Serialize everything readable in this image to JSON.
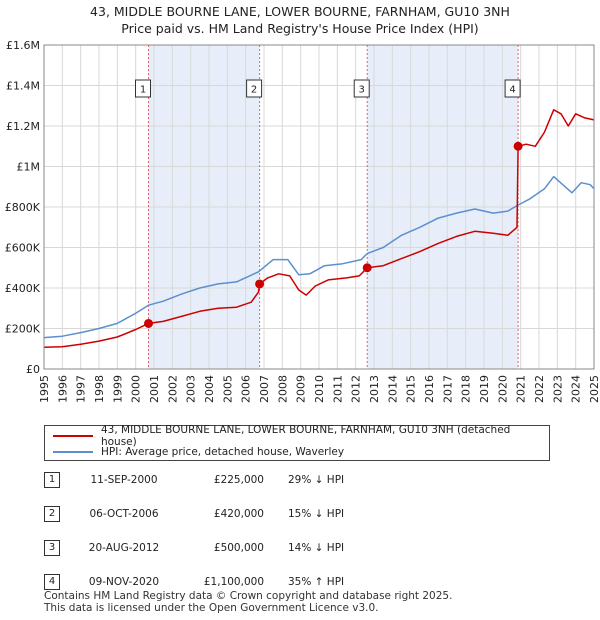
{
  "title_line1": "43, MIDDLE BOURNE LANE, LOWER BOURNE, FARNHAM, GU10 3NH",
  "title_line2": "Price paid vs. HM Land Registry's House Price Index (HPI)",
  "chart_data": {
    "type": "line",
    "xlim": [
      1995,
      2025
    ],
    "ylim": [
      0,
      1600000
    ],
    "y_ticks": [
      {
        "value": 0,
        "label": "£0"
      },
      {
        "value": 200000,
        "label": "£200K"
      },
      {
        "value": 400000,
        "label": "£400K"
      },
      {
        "value": 600000,
        "label": "£600K"
      },
      {
        "value": 800000,
        "label": "£800K"
      },
      {
        "value": 1000000,
        "label": "£1M"
      },
      {
        "value": 1200000,
        "label": "£1.2M"
      },
      {
        "value": 1400000,
        "label": "£1.4M"
      },
      {
        "value": 1600000,
        "label": "£1.6M"
      }
    ],
    "x_ticks": [
      "1995",
      "1996",
      "1997",
      "1998",
      "1999",
      "2000",
      "2001",
      "2002",
      "2003",
      "2004",
      "2005",
      "2006",
      "2007",
      "2008",
      "2009",
      "2010",
      "2011",
      "2012",
      "2013",
      "2014",
      "2015",
      "2016",
      "2017",
      "2018",
      "2019",
      "2020",
      "2021",
      "2022",
      "2023",
      "2024",
      "2025"
    ],
    "grid": true,
    "shaded_periods": [
      [
        2000.7,
        2006.76
      ],
      [
        2012.63,
        2020.86
      ]
    ],
    "series": [
      {
        "name": "43, MIDDLE BOURNE LANE, LOWER BOURNE, FARNHAM, GU10 3NH (detached house)",
        "color": "#cc0000",
        "points": [
          [
            1995.0,
            107000
          ],
          [
            1996.0,
            110000
          ],
          [
            1997.0,
            122000
          ],
          [
            1998.0,
            138000
          ],
          [
            1999.0,
            158000
          ],
          [
            2000.0,
            195000
          ],
          [
            2000.7,
            225000
          ],
          [
            2001.5,
            235000
          ],
          [
            2002.5,
            260000
          ],
          [
            2003.5,
            285000
          ],
          [
            2004.5,
            300000
          ],
          [
            2005.5,
            305000
          ],
          [
            2006.3,
            330000
          ],
          [
            2006.7,
            380000
          ],
          [
            2006.76,
            420000
          ],
          [
            2007.2,
            450000
          ],
          [
            2007.8,
            470000
          ],
          [
            2008.4,
            460000
          ],
          [
            2008.9,
            390000
          ],
          [
            2009.3,
            365000
          ],
          [
            2009.8,
            410000
          ],
          [
            2010.5,
            440000
          ],
          [
            2011.5,
            450000
          ],
          [
            2012.2,
            460000
          ],
          [
            2012.63,
            500000
          ],
          [
            2013.5,
            510000
          ],
          [
            2014.5,
            545000
          ],
          [
            2015.5,
            580000
          ],
          [
            2016.5,
            620000
          ],
          [
            2017.5,
            655000
          ],
          [
            2018.5,
            680000
          ],
          [
            2019.5,
            670000
          ],
          [
            2020.3,
            660000
          ],
          [
            2020.8,
            700000
          ],
          [
            2020.86,
            1100000
          ],
          [
            2021.3,
            1110000
          ],
          [
            2021.8,
            1100000
          ],
          [
            2022.3,
            1170000
          ],
          [
            2022.8,
            1280000
          ],
          [
            2023.2,
            1260000
          ],
          [
            2023.6,
            1200000
          ],
          [
            2024.0,
            1260000
          ],
          [
            2024.5,
            1240000
          ],
          [
            2025.0,
            1230000
          ]
        ]
      },
      {
        "name": "HPI: Average price, detached house, Waverley",
        "color": "#5b8fd0",
        "points": [
          [
            1995.0,
            155000
          ],
          [
            1996.0,
            162000
          ],
          [
            1997.0,
            180000
          ],
          [
            1998.0,
            200000
          ],
          [
            1999.0,
            225000
          ],
          [
            2000.0,
            275000
          ],
          [
            2000.7,
            315000
          ],
          [
            2001.5,
            335000
          ],
          [
            2002.5,
            370000
          ],
          [
            2003.5,
            400000
          ],
          [
            2004.5,
            420000
          ],
          [
            2005.5,
            430000
          ],
          [
            2006.7,
            480000
          ],
          [
            2007.5,
            540000
          ],
          [
            2008.3,
            540000
          ],
          [
            2008.9,
            465000
          ],
          [
            2009.5,
            470000
          ],
          [
            2010.3,
            510000
          ],
          [
            2011.3,
            520000
          ],
          [
            2012.3,
            540000
          ],
          [
            2012.63,
            570000
          ],
          [
            2013.5,
            600000
          ],
          [
            2014.5,
            660000
          ],
          [
            2015.5,
            700000
          ],
          [
            2016.5,
            745000
          ],
          [
            2017.5,
            770000
          ],
          [
            2018.5,
            790000
          ],
          [
            2019.5,
            770000
          ],
          [
            2020.3,
            780000
          ],
          [
            2020.86,
            810000
          ],
          [
            2021.5,
            840000
          ],
          [
            2022.3,
            890000
          ],
          [
            2022.8,
            950000
          ],
          [
            2023.3,
            910000
          ],
          [
            2023.8,
            870000
          ],
          [
            2024.3,
            920000
          ],
          [
            2024.8,
            910000
          ],
          [
            2025.0,
            890000
          ]
        ]
      }
    ],
    "sales": [
      {
        "num": "1",
        "x": 2000.7,
        "price": 225000
      },
      {
        "num": "2",
        "x": 2006.76,
        "price": 420000
      },
      {
        "num": "3",
        "x": 2012.63,
        "price": 500000
      },
      {
        "num": "4",
        "x": 2020.86,
        "price": 1100000
      }
    ],
    "legend_position": "below"
  },
  "legend": {
    "property_label": "43, MIDDLE BOURNE LANE, LOWER BOURNE, FARNHAM, GU10 3NH (detached house)",
    "hpi_label": "HPI: Average price, detached house, Waverley"
  },
  "sales_table": [
    {
      "num": "1",
      "date": "11-SEP-2000",
      "price": "£225,000",
      "hpi": "29% ↓ HPI"
    },
    {
      "num": "2",
      "date": "06-OCT-2006",
      "price": "£420,000",
      "hpi": "15% ↓ HPI"
    },
    {
      "num": "3",
      "date": "20-AUG-2012",
      "price": "£500,000",
      "hpi": "14% ↓ HPI"
    },
    {
      "num": "4",
      "date": "09-NOV-2020",
      "price": "£1,100,000",
      "hpi": "35% ↑ HPI"
    }
  ],
  "footer": {
    "line1": "Contains HM Land Registry data © Crown copyright and database right 2025.",
    "line2": "This data is licensed under the Open Government Licence v3.0."
  }
}
